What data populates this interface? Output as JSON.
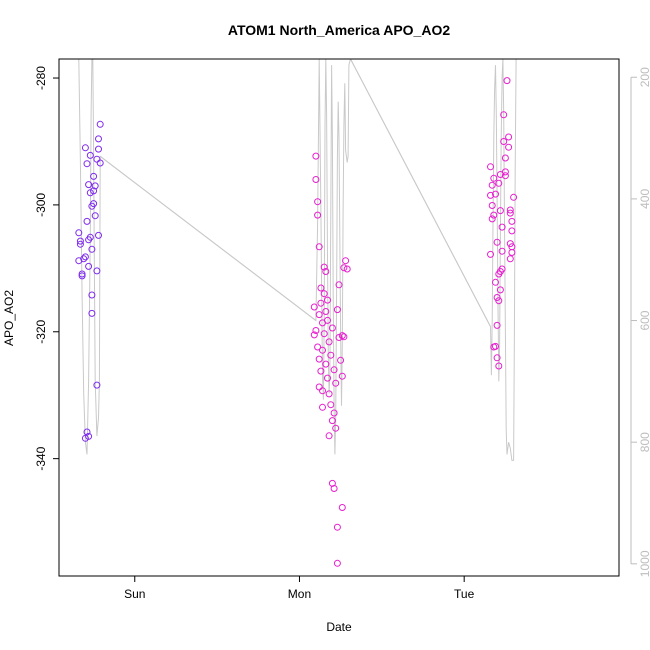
{
  "chart_data": {
    "type": "scatter",
    "title": "ATOM1 North_America APO_AO2",
    "xlabel": "Date",
    "ylabel": "APO_AO2",
    "x_unit": "days",
    "xlim": [
      0,
      3.4
    ],
    "ylim": [
      -358.5,
      -277
    ],
    "y2lim": [
      1020,
      170
    ],
    "x_ticks": [
      {
        "value": 0.46,
        "label": "Sun"
      },
      {
        "value": 1.46,
        "label": "Mon"
      },
      {
        "value": 2.46,
        "label": "Tue"
      }
    ],
    "y_ticks": [
      -340,
      -320,
      -300,
      -280
    ],
    "y2_ticks": [
      200,
      400,
      600,
      800,
      1000
    ],
    "grid": false,
    "legend": "none",
    "colors": {
      "points_early": "#7f2cf0",
      "points_late": "#e81fd0",
      "line": "#c9c9c9",
      "axis": "#000000",
      "right_axis": "#bdbdbd"
    },
    "points": [
      [
        0.12,
        -304.4
      ],
      [
        0.13,
        -306.2
      ],
      [
        0.12,
        -308.8
      ],
      [
        0.14,
        -310.9
      ],
      [
        0.13,
        -305.7
      ],
      [
        0.15,
        -308.5
      ],
      [
        0.14,
        -311.2
      ],
      [
        0.16,
        -336.8
      ],
      [
        0.17,
        -335.8
      ],
      [
        0.16,
        -291.0
      ],
      [
        0.17,
        -293.5
      ],
      [
        0.18,
        -296.8
      ],
      [
        0.17,
        -302.6
      ],
      [
        0.18,
        -305.5
      ],
      [
        0.18,
        -309.7
      ],
      [
        0.19,
        -292.2
      ],
      [
        0.19,
        -298.1
      ],
      [
        0.2,
        -300.2
      ],
      [
        0.19,
        -305.1
      ],
      [
        0.2,
        -307.0
      ],
      [
        0.21,
        -297.8
      ],
      [
        0.21,
        -299.8
      ],
      [
        0.22,
        -301.7
      ],
      [
        0.21,
        -295.5
      ],
      [
        0.22,
        -297.0
      ],
      [
        0.2,
        -314.2
      ],
      [
        0.2,
        -317.1
      ],
      [
        0.23,
        -292.8
      ],
      [
        0.24,
        -291.2
      ],
      [
        0.24,
        -289.6
      ],
      [
        0.23,
        -310.4
      ],
      [
        0.25,
        -293.4
      ],
      [
        0.25,
        -287.3
      ],
      [
        0.24,
        -304.8
      ],
      [
        0.23,
        -328.4
      ],
      [
        0.18,
        -336.5
      ],
      [
        0.16,
        -308.2
      ],
      [
        1.56,
        -292.3
      ],
      [
        1.56,
        -296.0
      ],
      [
        1.57,
        -299.5
      ],
      [
        1.57,
        -301.6
      ],
      [
        1.58,
        -306.6
      ],
      [
        1.55,
        -316.1
      ],
      [
        1.55,
        -320.5
      ],
      [
        1.56,
        -319.8
      ],
      [
        1.57,
        -322.4
      ],
      [
        1.58,
        -324.3
      ],
      [
        1.59,
        -326.2
      ],
      [
        1.6,
        -329.3
      ],
      [
        1.58,
        -328.7
      ],
      [
        1.6,
        -331.9
      ],
      [
        1.59,
        -313.1
      ],
      [
        1.61,
        -309.8
      ],
      [
        1.62,
        -310.5
      ],
      [
        1.61,
        -314.0
      ],
      [
        1.62,
        -316.8
      ],
      [
        1.63,
        -318.2
      ],
      [
        1.6,
        -322.9
      ],
      [
        1.61,
        -320.3
      ],
      [
        1.62,
        -325.1
      ],
      [
        1.63,
        -327.3
      ],
      [
        1.64,
        -329.8
      ],
      [
        1.65,
        -331.5
      ],
      [
        1.66,
        -334.0
      ],
      [
        1.64,
        -321.6
      ],
      [
        1.65,
        -323.7
      ],
      [
        1.66,
        -319.4
      ],
      [
        1.67,
        -326.0
      ],
      [
        1.68,
        -328.1
      ],
      [
        1.67,
        -332.8
      ],
      [
        1.68,
        -335.2
      ],
      [
        1.66,
        -343.9
      ],
      [
        1.67,
        -344.7
      ],
      [
        1.69,
        -350.8
      ],
      [
        1.69,
        -356.5
      ],
      [
        1.72,
        -347.7
      ],
      [
        1.69,
        -316.5
      ],
      [
        1.7,
        -320.9
      ],
      [
        1.71,
        -324.5
      ],
      [
        1.72,
        -327.0
      ],
      [
        1.72,
        -320.6
      ],
      [
        1.73,
        -309.9
      ],
      [
        1.74,
        -308.8
      ],
      [
        1.75,
        -310.1
      ],
      [
        1.73,
        -320.8
      ],
      [
        1.7,
        -312.6
      ],
      [
        1.59,
        -315.5
      ],
      [
        1.58,
        -317.3
      ],
      [
        1.63,
        -315.0
      ],
      [
        1.6,
        -318.6
      ],
      [
        1.64,
        -336.4
      ],
      [
        2.62,
        -294.0
      ],
      [
        2.63,
        -296.9
      ],
      [
        2.62,
        -298.5
      ],
      [
        2.63,
        -300.1
      ],
      [
        2.63,
        -302.2
      ],
      [
        2.64,
        -295.8
      ],
      [
        2.65,
        -298.3
      ],
      [
        2.62,
        -307.8
      ],
      [
        2.64,
        -322.4
      ],
      [
        2.65,
        -322.3
      ],
      [
        2.66,
        -319.0
      ],
      [
        2.66,
        -324.1
      ],
      [
        2.67,
        -325.4
      ],
      [
        2.67,
        -315.1
      ],
      [
        2.68,
        -313.4
      ],
      [
        2.67,
        -310.9
      ],
      [
        2.68,
        -310.5
      ],
      [
        2.69,
        -307.3
      ],
      [
        2.69,
        -310.1
      ],
      [
        2.65,
        -312.2
      ],
      [
        2.66,
        -314.6
      ],
      [
        2.67,
        -296.6
      ],
      [
        2.68,
        -300.9
      ],
      [
        2.66,
        -305.9
      ],
      [
        2.7,
        -285.8
      ],
      [
        2.7,
        -290.0
      ],
      [
        2.71,
        -292.6
      ],
      [
        2.72,
        -280.4
      ],
      [
        2.71,
        -295.4
      ],
      [
        2.73,
        -289.3
      ],
      [
        2.73,
        -290.9
      ],
      [
        2.74,
        -300.8
      ],
      [
        2.74,
        -301.3
      ],
      [
        2.75,
        -302.6
      ],
      [
        2.75,
        -304.1
      ],
      [
        2.74,
        -306.1
      ],
      [
        2.75,
        -306.6
      ],
      [
        2.76,
        -298.8
      ],
      [
        2.74,
        -308.5
      ],
      [
        2.75,
        -307.5
      ],
      [
        2.69,
        -303.5
      ],
      [
        2.68,
        -295.2
      ],
      [
        2.71,
        -294.8
      ],
      [
        2.64,
        -301.6
      ]
    ],
    "line_right_axis": [
      [
        0.12,
        170
      ],
      [
        0.13,
        340
      ],
      [
        0.14,
        560
      ],
      [
        0.15,
        720
      ],
      [
        0.16,
        800
      ],
      [
        0.17,
        820
      ],
      [
        0.18,
        700
      ],
      [
        0.19,
        460
      ],
      [
        0.195,
        260
      ],
      [
        0.2,
        170
      ],
      [
        0.205,
        170
      ],
      [
        0.21,
        320
      ],
      [
        0.215,
        520
      ],
      [
        0.22,
        700
      ],
      [
        0.23,
        790
      ],
      [
        0.24,
        760
      ],
      [
        0.245,
        700
      ],
      [
        0.25,
        330
      ],
      [
        1.56,
        600
      ],
      [
        1.57,
        440
      ],
      [
        1.58,
        170
      ],
      [
        1.585,
        300
      ],
      [
        1.59,
        420
      ],
      [
        1.595,
        560
      ],
      [
        1.6,
        690
      ],
      [
        1.605,
        730
      ],
      [
        1.61,
        600
      ],
      [
        1.615,
        280
      ],
      [
        1.62,
        170
      ],
      [
        1.625,
        260
      ],
      [
        1.63,
        500
      ],
      [
        1.635,
        660
      ],
      [
        1.64,
        720
      ],
      [
        1.645,
        690
      ],
      [
        1.65,
        420
      ],
      [
        1.655,
        180
      ],
      [
        1.66,
        300
      ],
      [
        1.665,
        560
      ],
      [
        1.67,
        740
      ],
      [
        1.675,
        820
      ],
      [
        1.68,
        760
      ],
      [
        1.685,
        580
      ],
      [
        1.69,
        330
      ],
      [
        1.695,
        240
      ],
      [
        1.7,
        300
      ],
      [
        1.705,
        460
      ],
      [
        1.71,
        620
      ],
      [
        1.715,
        740
      ],
      [
        1.72,
        640
      ],
      [
        1.725,
        420
      ],
      [
        1.73,
        280
      ],
      [
        1.735,
        210
      ],
      [
        1.74,
        320
      ],
      [
        1.745,
        330
      ],
      [
        1.75,
        340
      ],
      [
        1.755,
        330
      ],
      [
        1.76,
        180
      ],
      [
        1.77,
        170
      ],
      [
        2.62,
        610
      ],
      [
        2.625,
        690
      ],
      [
        2.63,
        600
      ],
      [
        2.635,
        440
      ],
      [
        2.64,
        300
      ],
      [
        2.645,
        220
      ],
      [
        2.65,
        180
      ],
      [
        2.655,
        260
      ],
      [
        2.66,
        400
      ],
      [
        2.665,
        560
      ],
      [
        2.67,
        700
      ],
      [
        2.675,
        640
      ],
      [
        2.68,
        460
      ],
      [
        2.685,
        300
      ],
      [
        2.69,
        200
      ],
      [
        2.695,
        170
      ],
      [
        2.7,
        260
      ],
      [
        2.705,
        440
      ],
      [
        2.71,
        620
      ],
      [
        2.715,
        780
      ],
      [
        2.72,
        820
      ],
      [
        2.73,
        800
      ],
      [
        2.74,
        810
      ],
      [
        2.75,
        830
      ],
      [
        2.76,
        830
      ],
      [
        2.765,
        620
      ],
      [
        2.77,
        350
      ],
      [
        2.775,
        170
      ]
    ],
    "line_bridges": [
      [
        [
          0.25,
          330
        ],
        [
          1.56,
          600
        ]
      ],
      [
        [
          1.77,
          170
        ],
        [
          2.62,
          610
        ]
      ]
    ]
  }
}
